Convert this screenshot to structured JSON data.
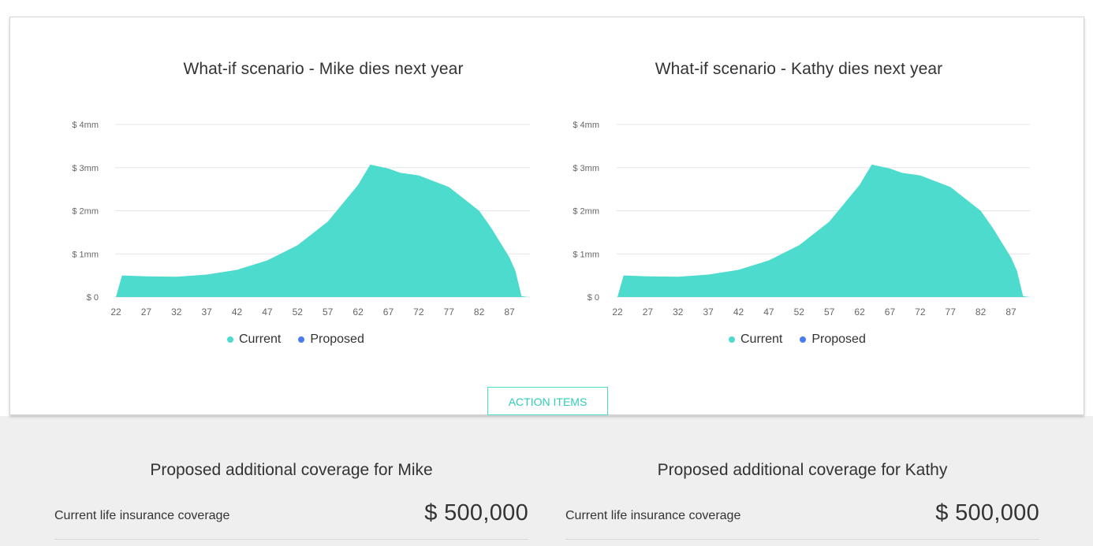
{
  "colors": {
    "current": "#4cdbcd",
    "proposed": "#4b7bec",
    "accent": "#2fcdb8"
  },
  "charts": [
    {
      "title": "What-if scenario - Mike dies next year",
      "legend": [
        {
          "label": "Current",
          "color": "#4cdbcd"
        },
        {
          "label": "Proposed",
          "color": "#4b7bec"
        }
      ]
    },
    {
      "title": "What-if scenario - Kathy dies next year",
      "legend": [
        {
          "label": "Current",
          "color": "#4cdbcd"
        },
        {
          "label": "Proposed",
          "color": "#4b7bec"
        }
      ]
    }
  ],
  "chart_data": [
    {
      "type": "area",
      "title": "What-if scenario - Mike dies next year",
      "x_ticks": [
        22,
        27,
        32,
        37,
        42,
        47,
        52,
        57,
        62,
        67,
        72,
        77,
        82,
        87
      ],
      "y_ticks": [
        "$ 0",
        "$ 1mm",
        "$ 2mm",
        "$ 3mm",
        "$ 4mm"
      ],
      "xlim": [
        22,
        90
      ],
      "ylim": [
        0,
        4
      ],
      "series": [
        {
          "name": "Current",
          "color": "#4cdbcd",
          "x": [
            22,
            23,
            27,
            32,
            37,
            42,
            47,
            52,
            57,
            62,
            64,
            67,
            69,
            72,
            77,
            82,
            84,
            87,
            88,
            89,
            90
          ],
          "y": [
            0,
            0.5,
            0.48,
            0.47,
            0.52,
            0.63,
            0.85,
            1.2,
            1.75,
            2.6,
            3.07,
            2.98,
            2.88,
            2.82,
            2.55,
            2.0,
            1.6,
            0.92,
            0.6,
            0.02,
            0
          ]
        },
        {
          "name": "Proposed",
          "color": "#4b7bec",
          "x": [],
          "y": []
        }
      ],
      "legend": "bottom-center",
      "grid": true
    },
    {
      "type": "area",
      "title": "What-if scenario - Kathy dies next year",
      "x_ticks": [
        22,
        27,
        32,
        37,
        42,
        47,
        52,
        57,
        62,
        67,
        72,
        77,
        82,
        87
      ],
      "y_ticks": [
        "$ 0",
        "$ 1mm",
        "$ 2mm",
        "$ 3mm",
        "$ 4mm"
      ],
      "xlim": [
        22,
        90
      ],
      "ylim": [
        0,
        4
      ],
      "series": [
        {
          "name": "Current",
          "color": "#4cdbcd",
          "x": [
            22,
            23,
            27,
            32,
            37,
            42,
            47,
            52,
            57,
            62,
            64,
            67,
            69,
            72,
            77,
            82,
            84,
            87,
            88,
            89,
            90
          ],
          "y": [
            0,
            0.5,
            0.48,
            0.47,
            0.52,
            0.63,
            0.85,
            1.2,
            1.75,
            2.6,
            3.07,
            2.98,
            2.88,
            2.82,
            2.55,
            2.0,
            1.6,
            0.92,
            0.6,
            0.02,
            0
          ]
        },
        {
          "name": "Proposed",
          "color": "#4b7bec",
          "x": [],
          "y": []
        }
      ],
      "legend": "bottom-center",
      "grid": true
    }
  ],
  "action_button": {
    "label": "ACTION ITEMS"
  },
  "coverage": [
    {
      "title": "Proposed additional coverage for Mike",
      "label": "Current life insurance coverage",
      "value": "$ 500,000"
    },
    {
      "title": "Proposed additional coverage for Kathy",
      "label": "Current life insurance coverage",
      "value": "$ 500,000"
    }
  ]
}
